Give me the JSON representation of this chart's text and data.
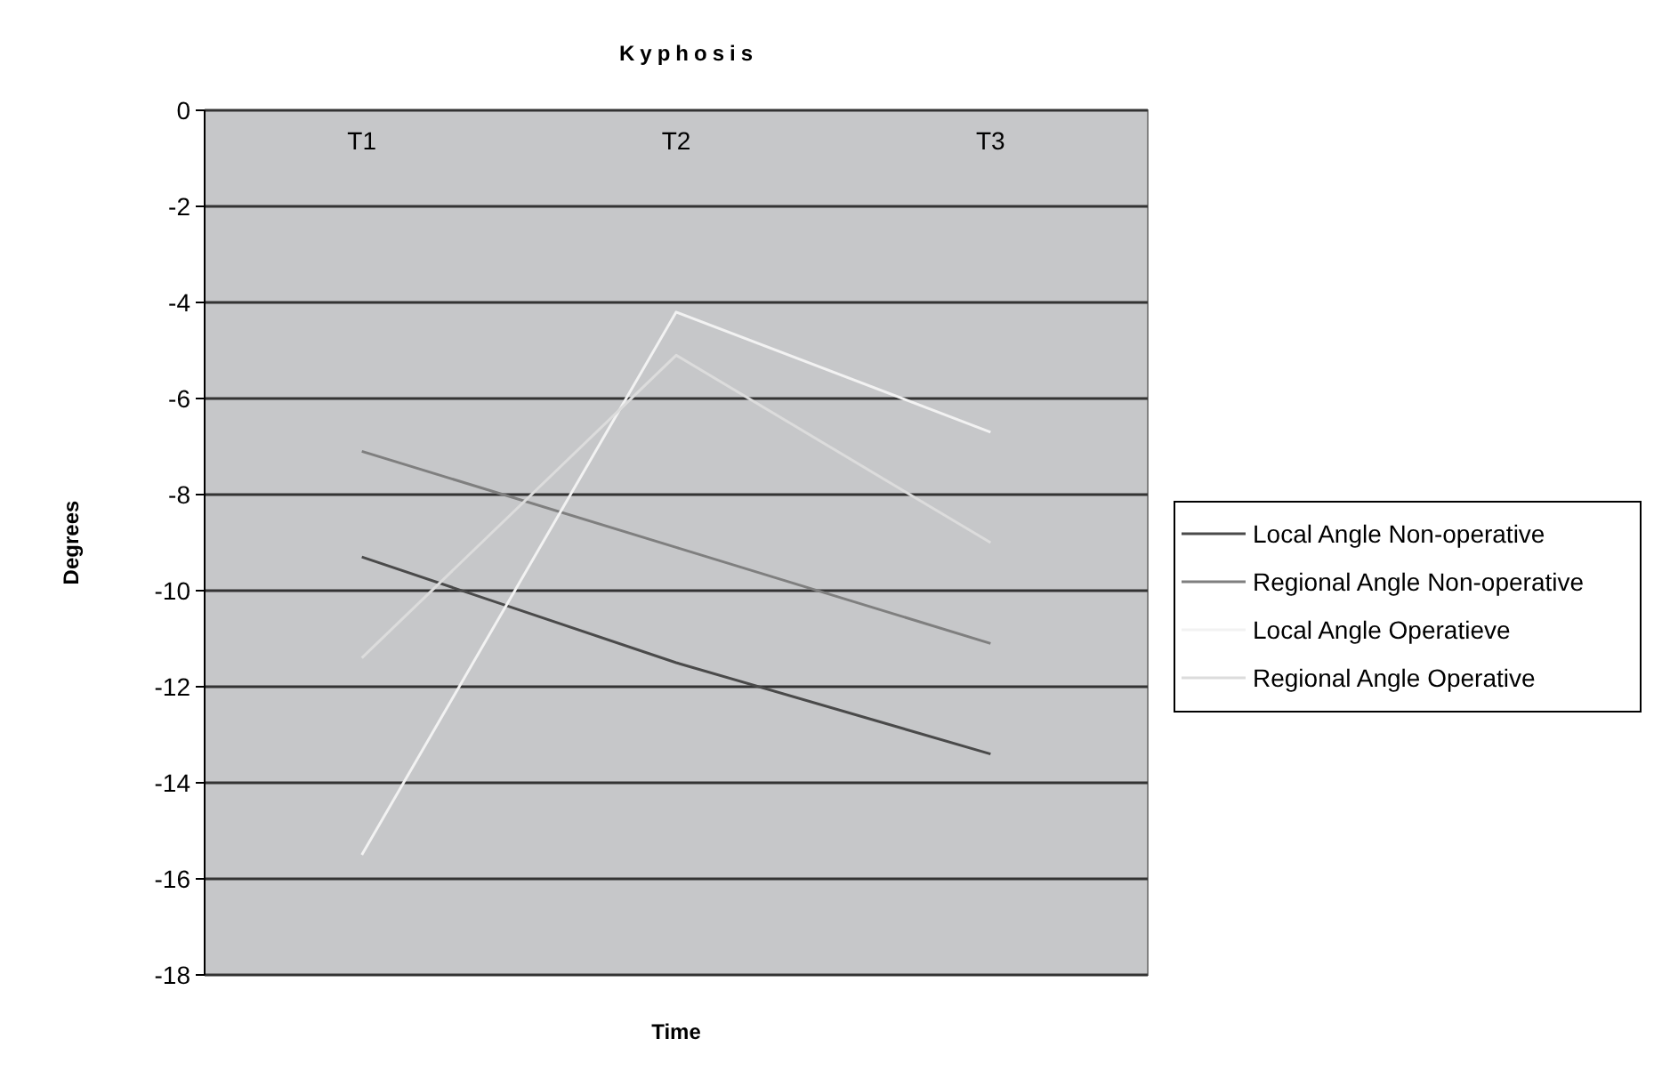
{
  "chart_data": {
    "type": "line",
    "title": "Kyphosis",
    "xlabel": "Time",
    "ylabel": "Degrees",
    "categories": [
      "T1",
      "T2",
      "T3"
    ],
    "series": [
      {
        "name": "Local Angle Non-operative",
        "color": "#4a4a4a",
        "values": [
          -9.3,
          -11.5,
          -13.4
        ]
      },
      {
        "name": "Regional Angle Non-operative",
        "color": "#7f7f7f",
        "values": [
          -7.1,
          -9.1,
          -11.1
        ]
      },
      {
        "name": "Local Angle Operatieve",
        "color": "#f2f2f2",
        "values": [
          -15.5,
          -4.2,
          -6.7
        ]
      },
      {
        "name": "Regional Angle Operative",
        "color": "#dcdcdc",
        "values": [
          -11.4,
          -5.1,
          -9.0
        ]
      }
    ],
    "ylim": [
      -18,
      0
    ],
    "yticks": [
      -18,
      -16,
      -14,
      -12,
      -10,
      -8,
      -6,
      -4,
      -2,
      0
    ],
    "grid": "y",
    "legend": "right",
    "marker": "none",
    "line_style": "solid"
  }
}
